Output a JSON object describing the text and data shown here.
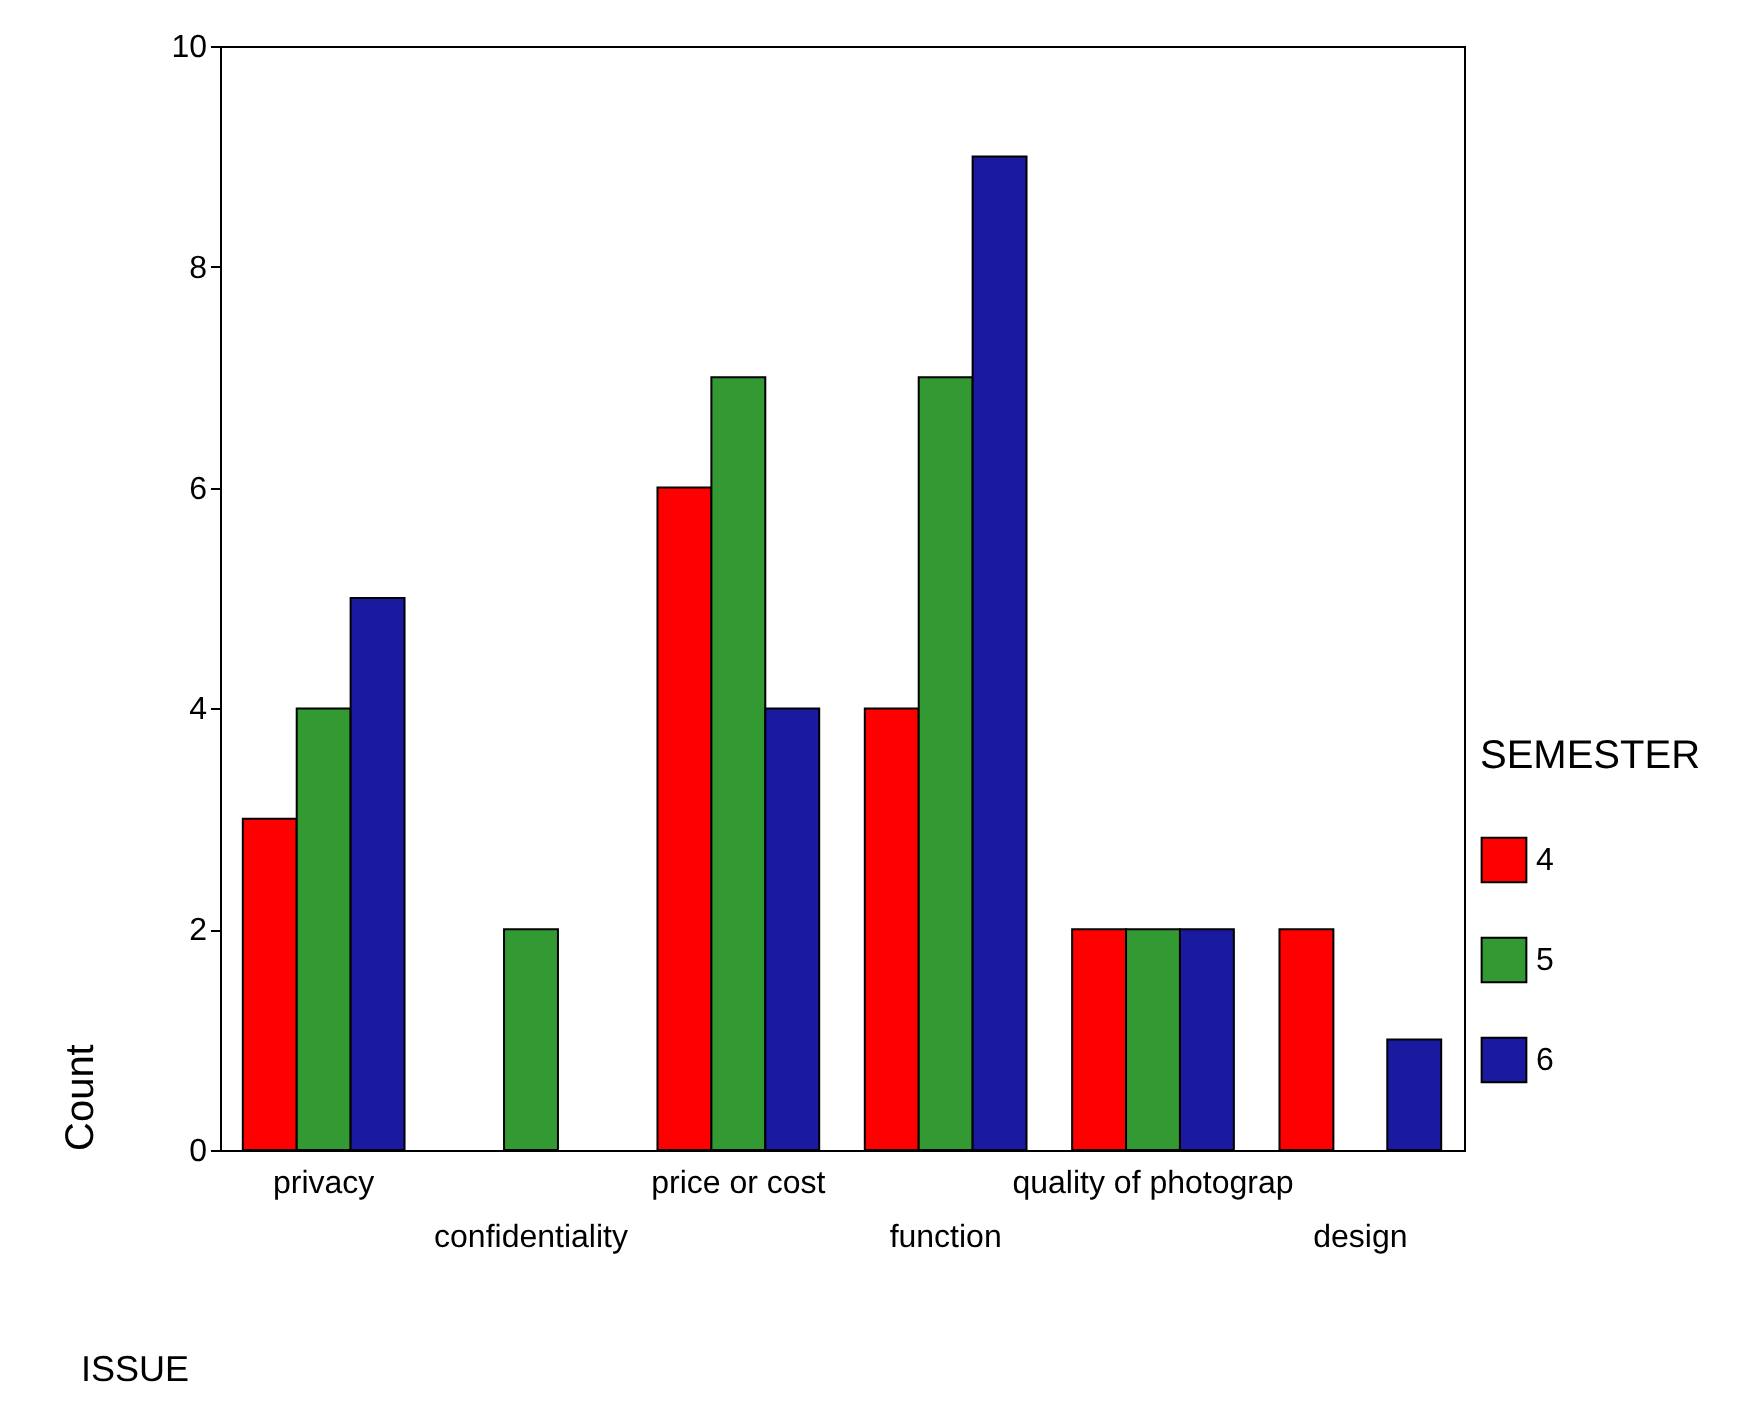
{
  "chart_data": {
    "type": "bar",
    "xlabel": "ISSUE",
    "ylabel": "Count",
    "legend_title": "SEMESTER",
    "legend": "right",
    "grid": false,
    "categories": [
      "privacy",
      "confidentiality",
      "price or cost",
      "function",
      "quality of photograp",
      "design"
    ],
    "ylim": [
      0,
      10
    ],
    "yticks": [
      0,
      2,
      4,
      6,
      8,
      10
    ],
    "series": [
      {
        "name": "4",
        "color": "#ff0000",
        "values": [
          3,
          null,
          6,
          4,
          2,
          2
        ]
      },
      {
        "name": "5",
        "color": "#339933",
        "values": [
          4,
          2,
          7,
          7,
          2,
          null
        ]
      },
      {
        "name": "6",
        "color": "#1a1aa0",
        "values": [
          5,
          null,
          4,
          9,
          2,
          1
        ]
      }
    ]
  }
}
